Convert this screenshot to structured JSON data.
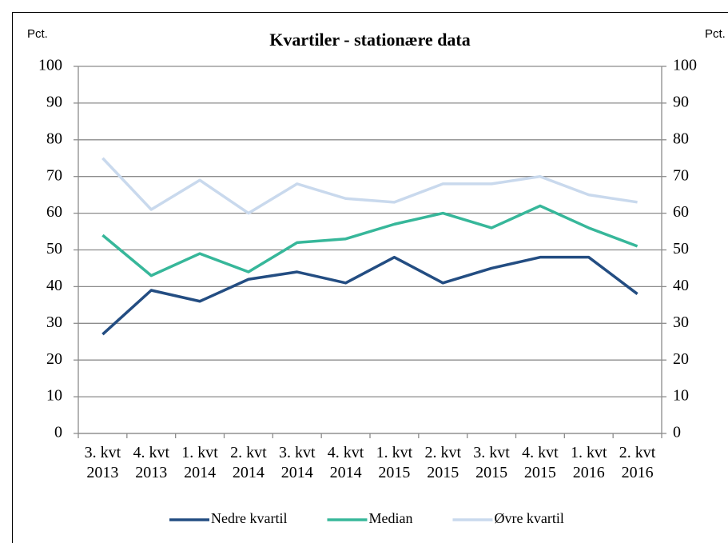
{
  "chart_data": {
    "type": "line",
    "title": "Kvartiler - stationære data",
    "y_label": "Pct.",
    "y2_label": "Pct.",
    "categories": [
      "3. kvt 2013",
      "4. kvt 2013",
      "1. kvt 2014",
      "2. kvt 2014",
      "3. kvt 2014",
      "4. kvt 2014",
      "1. kvt 2015",
      "2. kvt 2015",
      "3. kvt 2015",
      "4. kvt 2015",
      "1. kvt 2016",
      "2. kvt 2016"
    ],
    "series": [
      {
        "name": "Nedre kvartil",
        "color": "#234d82",
        "values": [
          27,
          39,
          36,
          42,
          44,
          41,
          48,
          41,
          45,
          48,
          48,
          38
        ]
      },
      {
        "name": "Median",
        "color": "#37b79a",
        "values": [
          54,
          43,
          49,
          44,
          52,
          53,
          57,
          60,
          56,
          62,
          56,
          51
        ]
      },
      {
        "name": "Øvre kvartil",
        "color": "#c9d9ed",
        "values": [
          75,
          61,
          69,
          60,
          68,
          64,
          63,
          68,
          68,
          70,
          65,
          63
        ]
      }
    ],
    "ylim": [
      0,
      100
    ],
    "yticks": [
      0,
      10,
      20,
      30,
      40,
      50,
      60,
      70,
      80,
      90,
      100
    ],
    "y2lim": [
      0,
      100
    ],
    "y2ticks": [
      0,
      10,
      20,
      30,
      40,
      50,
      60,
      70,
      80,
      90,
      100
    ],
    "grid": true,
    "legend": "bottom"
  }
}
